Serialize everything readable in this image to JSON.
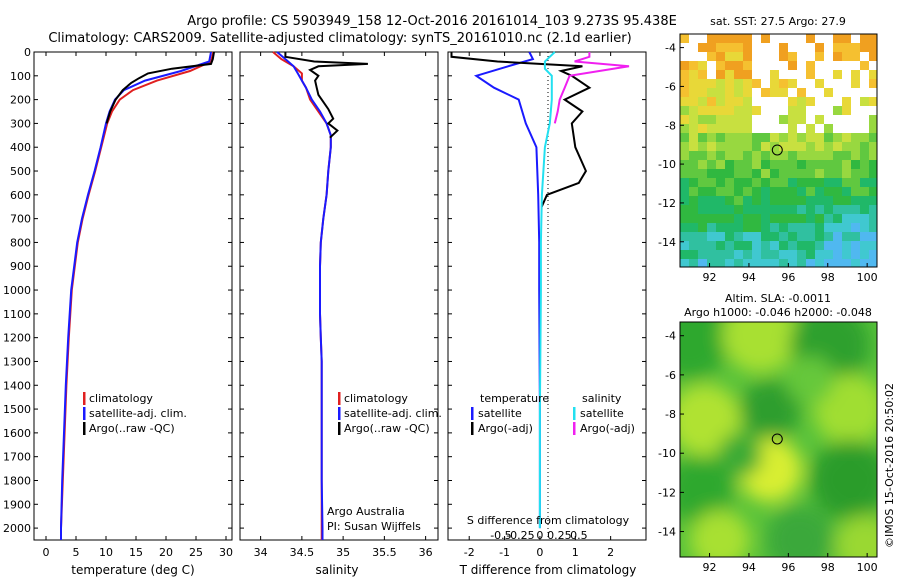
{
  "header": {
    "title_line1": "Argo profile: CS 5903949_158 12-Oct-2016 20161014_103 9.273S 95.438E",
    "title_line2": "Climatology: CARS2009. Satellite-adjusted climatology: synTS_20161010.nc (2.1d earlier)"
  },
  "colors": {
    "climatology": "#e02020",
    "satellite": "#1a1aff",
    "argo": "#000000",
    "sat_salinity": "#22e0f0",
    "argo_salinity": "#f020f0"
  },
  "chart_data": [
    {
      "type": "line",
      "id": "temperature",
      "xlabel": "temperature (deg C)",
      "xticks": [
        0,
        5,
        10,
        15,
        20,
        25,
        30
      ],
      "xlim": [
        -2,
        31
      ],
      "yticks": [
        0,
        100,
        200,
        300,
        400,
        500,
        600,
        700,
        800,
        900,
        1000,
        1100,
        1200,
        1300,
        1400,
        1500,
        1600,
        1700,
        1800,
        1900,
        2000
      ],
      "ylim": [
        0,
        2050
      ],
      "legend": [
        "climatology",
        "satellite-adj. clim.",
        "Argo(..raw -QC)"
      ],
      "series": [
        {
          "name": "climatology",
          "color": "#e02020",
          "depth": [
            0,
            40,
            80,
            120,
            160,
            200,
            250,
            300,
            400,
            500,
            600,
            700,
            800,
            1000,
            1200,
            1400,
            1600,
            1800,
            2000,
            2050
          ],
          "values": [
            27.9,
            27.5,
            24,
            18.5,
            14.5,
            12.3,
            11,
            10.2,
            9.2,
            8.2,
            7.1,
            6.1,
            5.3,
            4.3,
            3.8,
            3.4,
            3.1,
            2.8,
            2.5,
            2.5
          ]
        },
        {
          "name": "satellite-adj. clim.",
          "color": "#1a1aff",
          "depth": [
            0,
            40,
            80,
            120,
            160,
            200,
            250,
            300,
            400,
            500,
            600,
            700,
            800,
            1000,
            1200,
            1400,
            1600,
            1800,
            2000,
            2050
          ],
          "values": [
            27.5,
            27.2,
            22.5,
            16.5,
            13,
            11.5,
            10.6,
            10,
            9.1,
            8.1,
            7,
            6,
            5.2,
            4.2,
            3.7,
            3.3,
            3,
            2.7,
            2.5,
            2.5
          ]
        },
        {
          "name": "Argo(..raw -QC)",
          "color": "#000000",
          "depth": [
            0,
            30,
            50,
            70,
            90,
            110,
            130,
            160,
            200,
            250,
            300
          ],
          "values": [
            28,
            27.8,
            27.5,
            21,
            17,
            15.5,
            14.2,
            12.8,
            11.6,
            10.7,
            10.1
          ]
        }
      ]
    },
    {
      "type": "line",
      "id": "salinity",
      "xlabel": "salinity",
      "xticks": [
        34,
        34.5,
        35,
        35.5,
        36
      ],
      "xlim": [
        33.75,
        36.15
      ],
      "legend": [
        "climatology",
        "satellite-adj. clim.",
        "Argo(..raw -QC)"
      ],
      "annotation": [
        "Argo Australia",
        "PI: Susan Wijffels"
      ],
      "series": [
        {
          "name": "climatology",
          "color": "#e02020",
          "depth": [
            0,
            30,
            60,
            90,
            120,
            150,
            200,
            250,
            300,
            350,
            400,
            500,
            600,
            700,
            800,
            900,
            1000,
            1100,
            1200,
            1300,
            1400,
            1500,
            1600,
            1800,
            2000,
            2050
          ],
          "values": [
            34.15,
            34.25,
            34.4,
            34.5,
            34.5,
            34.55,
            34.6,
            34.7,
            34.8,
            34.85,
            34.85,
            34.82,
            34.8,
            34.76,
            34.73,
            34.72,
            34.72,
            34.72,
            34.73,
            34.74,
            34.74,
            34.74,
            34.74,
            34.74,
            34.74,
            34.74
          ]
        },
        {
          "name": "satellite-adj. clim.",
          "color": "#1a1aff",
          "depth": [
            0,
            30,
            60,
            90,
            120,
            150,
            200,
            250,
            300,
            350,
            400,
            500,
            600,
            700,
            800,
            900,
            1000,
            1100,
            1200,
            1300,
            1400,
            1500,
            1600,
            1800,
            2000,
            2050
          ],
          "values": [
            34.2,
            34.3,
            34.4,
            34.45,
            34.5,
            34.55,
            34.62,
            34.72,
            34.8,
            34.85,
            34.85,
            34.82,
            34.8,
            34.76,
            34.73,
            34.72,
            34.72,
            34.72,
            34.73,
            34.74,
            34.74,
            34.74,
            34.74,
            34.74,
            34.75,
            34.75
          ]
        },
        {
          "name": "Argo(..raw -QC)",
          "color": "#000000",
          "depth": [
            0,
            20,
            40,
            50,
            60,
            75,
            100,
            120,
            150,
            180,
            200,
            240,
            280,
            300,
            330,
            360
          ],
          "values": [
            34.3,
            34.3,
            34.65,
            35.3,
            34.7,
            34.6,
            34.7,
            34.66,
            34.68,
            34.7,
            34.74,
            34.82,
            34.88,
            34.82,
            34.93,
            34.84
          ]
        }
      ]
    },
    {
      "type": "line",
      "id": "differences",
      "xlabel": "T difference from climatology",
      "x2label": "S difference from climatology",
      "xticks_T": [
        -2,
        -1,
        0,
        1,
        2
      ],
      "xticks_S": [
        -0.5,
        -0.25,
        0,
        0.25,
        0.5
      ],
      "xlim_T": [
        -2.6,
        3.0
      ],
      "legend_T_title": "temperature",
      "legend_S_title": "salinity",
      "legend": [
        "satellite",
        "Argo(-adj)"
      ],
      "series": [
        {
          "name": "T satellite",
          "color": "#1a1aff",
          "depth": [
            0,
            30,
            60,
            100,
            150,
            200,
            300,
            400,
            600,
            800,
            1000,
            1500,
            2000
          ],
          "values": [
            -0.3,
            -0.2,
            -0.9,
            -1.8,
            -1.3,
            -0.6,
            -0.4,
            -0.1,
            -0.05,
            -0.02,
            -0.02,
            0,
            0
          ]
        },
        {
          "name": "T Argo(-adj)",
          "color": "#000000",
          "depth": [
            0,
            20,
            40,
            60,
            80,
            100,
            150,
            200,
            250,
            300,
            400,
            500,
            550,
            600,
            650
          ],
          "values": [
            -2.5,
            -2.5,
            -1.2,
            1.2,
            0.6,
            0.9,
            1.4,
            0.7,
            1.2,
            0.9,
            1.0,
            1.3,
            1.1,
            0.2,
            0.05
          ]
        },
        {
          "name": "S satellite",
          "color": "#22e0f0",
          "depth": [
            0,
            20,
            40,
            70,
            100,
            200,
            300,
            400,
            600,
            800,
            1000,
            1500,
            2000
          ],
          "values": [
            0.15,
            0.1,
            0.05,
            0.05,
            0.12,
            0.12,
            0.1,
            0.05,
            0.02,
            0.01,
            0.01,
            0.0,
            0.0
          ]
        },
        {
          "name": "S Argo(-adj)",
          "color": "#f020f0",
          "depth": [
            0,
            20,
            40,
            60,
            80,
            100,
            150,
            200,
            250,
            300
          ],
          "values": [
            0.5,
            0.5,
            0.35,
            0.9,
            0.6,
            0.3,
            0.25,
            0.2,
            0.18,
            0.15
          ]
        }
      ]
    },
    {
      "type": "heatmap",
      "id": "sst-map",
      "title": "sat. SST: 27.5 Argo: 27.9",
      "xticks": [
        92,
        94,
        96,
        98,
        100
      ],
      "yticks": [
        -4,
        -6,
        -8,
        -10,
        -12,
        -14
      ],
      "xlim": [
        90.5,
        100.5
      ],
      "ylim": [
        -15.3,
        -3.3
      ],
      "marker": {
        "lon": 95.438,
        "lat": -9.273
      }
    },
    {
      "type": "heatmap",
      "id": "sla-map",
      "title_line1": "Altim. SLA: -0.0011",
      "title_line2": "Argo h1000: -0.046 h2000: -0.048",
      "xticks": [
        92,
        94,
        96,
        98,
        100
      ],
      "yticks": [
        -4,
        -6,
        -8,
        -10,
        -12,
        -14
      ],
      "xlim": [
        90.5,
        100.5
      ],
      "ylim": [
        -15.3,
        -3.3
      ],
      "marker": {
        "lon": 95.438,
        "lat": -9.273
      }
    }
  ],
  "footer": {
    "watermark": "©IMOS 15-Oct-2016 20:50:02"
  }
}
